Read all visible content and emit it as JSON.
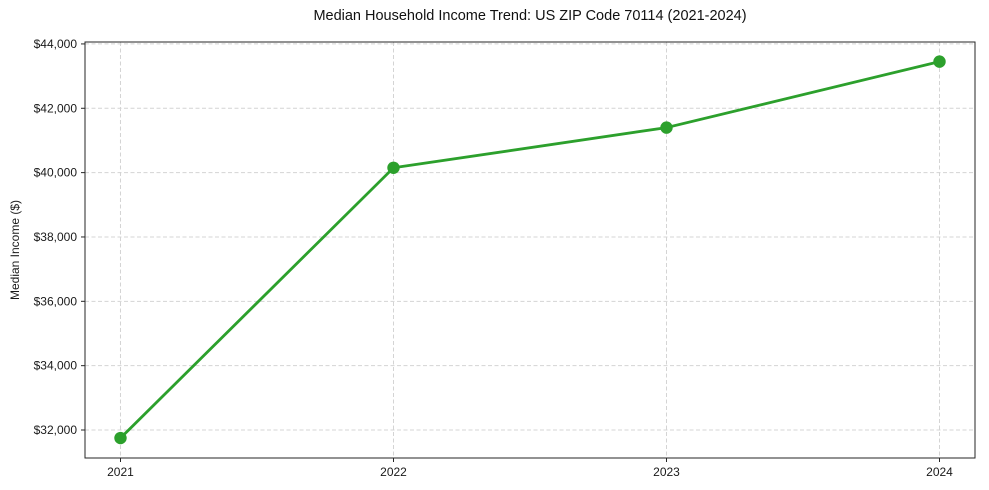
{
  "chart_data": {
    "type": "line",
    "title": "Median Household Income Trend: US ZIP Code 70114 (2021-2024)",
    "xlabel": "",
    "ylabel": "Median Income ($)",
    "x": [
      2021,
      2022,
      2023,
      2024
    ],
    "x_tick_labels": [
      "2021",
      "2022",
      "2023",
      "2024"
    ],
    "series": [
      {
        "name": "Median Household Income",
        "values": [
          31750,
          40150,
          41400,
          43450
        ]
      }
    ],
    "y_ticks": [
      32000,
      34000,
      36000,
      38000,
      40000,
      42000,
      44000
    ],
    "y_tick_labels": [
      "$32,000",
      "$34,000",
      "$36,000",
      "$38,000",
      "$40,000",
      "$42,000",
      "$44,000"
    ],
    "xlim": [
      2020.87,
      2024.13
    ],
    "ylim": [
      31130,
      44060
    ],
    "grid": true,
    "legend": "none",
    "marker": "circle",
    "colors": {
      "line": "#2ca02c",
      "grid": "#d4d4d4",
      "spine": "#262626",
      "text": "#1a1a1a",
      "background": "#ffffff"
    }
  }
}
